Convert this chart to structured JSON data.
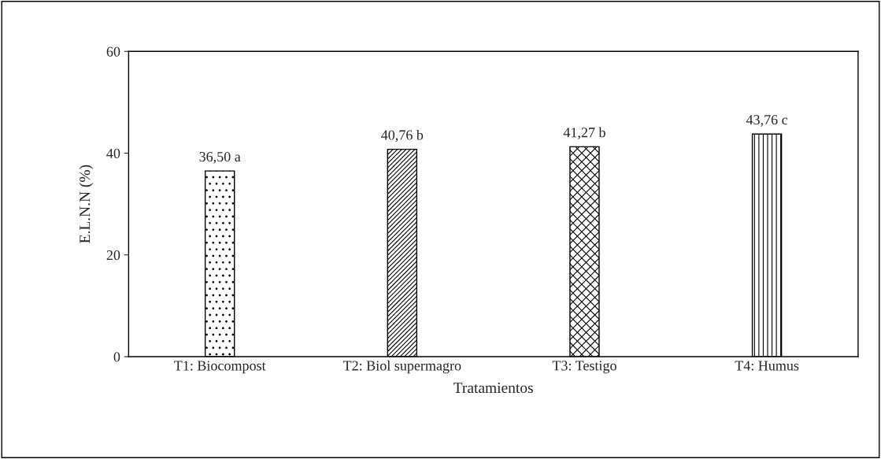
{
  "chart_data": {
    "type": "bar",
    "categories": [
      "T1: Biocompost",
      "T2: Biol supermagro",
      "T3: Testigo",
      "T4: Humus"
    ],
    "values": [
      36.5,
      40.76,
      41.27,
      43.76
    ],
    "value_labels": [
      "36,50 a",
      "40,76 b",
      "41,27 b",
      "43,76 c"
    ],
    "xlabel": "Tratamientos",
    "ylabel": "E.L.N.N (%)",
    "ylim": [
      0,
      60
    ],
    "yticks": [
      0,
      20,
      40,
      60
    ],
    "grid": false,
    "legend": false
  }
}
